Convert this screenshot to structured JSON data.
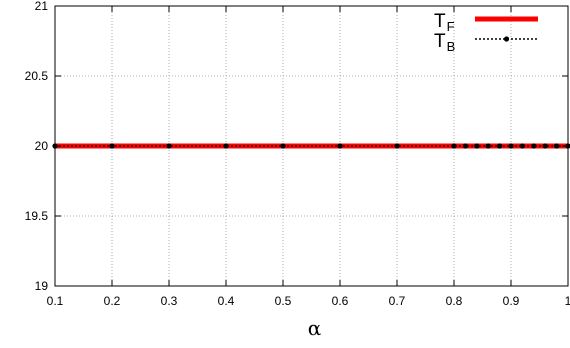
{
  "chart_data": {
    "type": "line",
    "title": "",
    "xlabel": "α",
    "ylabel": "",
    "xlim": [
      0.1,
      1
    ],
    "ylim": [
      19,
      21
    ],
    "grid": true,
    "legend_position": "top-right",
    "x_ticks": [
      "0.1",
      "0.2",
      "0.3",
      "0.4",
      "0.5",
      "0.6",
      "0.7",
      "0.8",
      "0.9",
      "1"
    ],
    "y_ticks": [
      "19",
      "19.5",
      "20",
      "20.5",
      "21"
    ],
    "series": [
      {
        "name": "T_F",
        "legend_main": "T",
        "legend_sub": "F",
        "color": "#ff0000",
        "style": "solid-thick",
        "x": [
          0.1,
          0.2,
          0.3,
          0.4,
          0.5,
          0.6,
          0.7,
          0.8,
          0.82,
          0.84,
          0.86,
          0.88,
          0.9,
          0.92,
          0.94,
          0.96,
          0.98,
          1.0
        ],
        "y": [
          20,
          20,
          20,
          20,
          20,
          20,
          20,
          20,
          20,
          20,
          20,
          20,
          20,
          20,
          20,
          20,
          20,
          20
        ]
      },
      {
        "name": "T_B",
        "legend_main": "T",
        "legend_sub": "B",
        "color": "#000000",
        "style": "dotted-markers",
        "x": [
          0.1,
          0.2,
          0.3,
          0.4,
          0.5,
          0.6,
          0.7,
          0.8,
          0.82,
          0.84,
          0.86,
          0.88,
          0.9,
          0.92,
          0.94,
          0.96,
          0.98,
          1.0
        ],
        "y": [
          20,
          20,
          20,
          20,
          20,
          20,
          20,
          20,
          20,
          20,
          20,
          20,
          20,
          20,
          20,
          20,
          20,
          20
        ]
      }
    ]
  }
}
